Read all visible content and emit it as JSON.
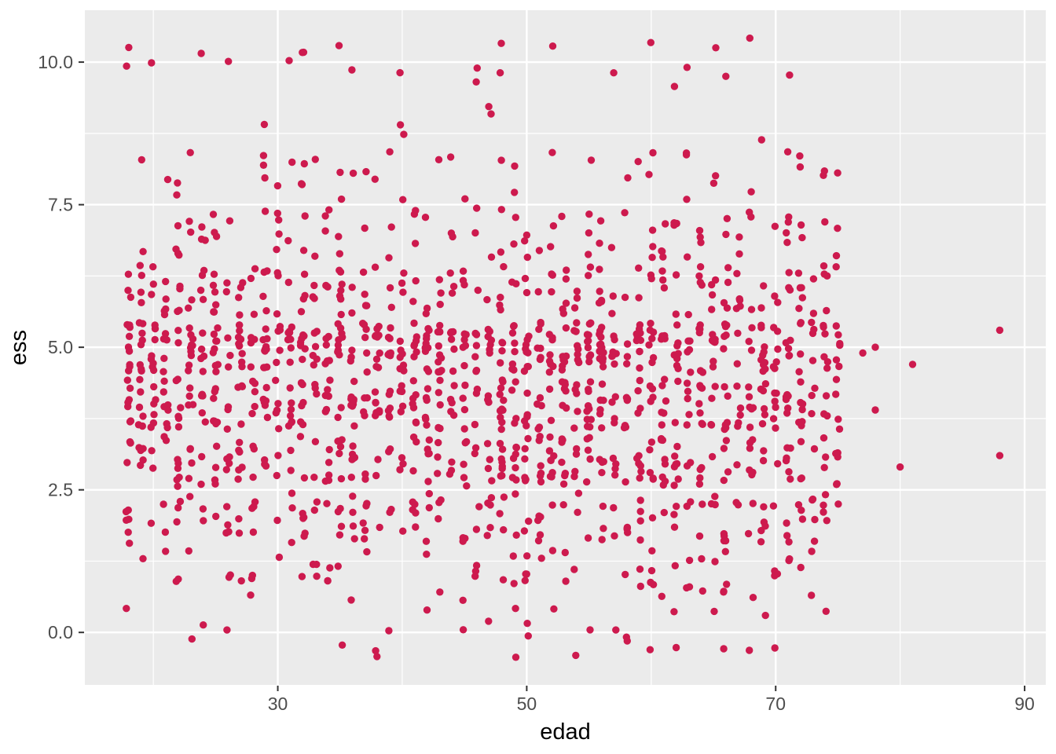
{
  "chart_data": {
    "type": "scatter",
    "title": "",
    "xlabel": "edad",
    "ylabel": "ess",
    "x_ticks": [
      30,
      50,
      70,
      90
    ],
    "x_tick_labels": [
      "30",
      "50",
      "70",
      "90"
    ],
    "x_minor_ticks": [
      20,
      40,
      60,
      80
    ],
    "y_ticks": [
      0.0,
      2.5,
      5.0,
      7.5,
      10.0
    ],
    "y_tick_labels": [
      "0.0",
      "2.5",
      "5.0",
      "7.5",
      "10.0"
    ],
    "y_minor_ticks": [
      1.25,
      3.75,
      6.25,
      8.75
    ],
    "xlim": [
      14.5,
      91.7
    ],
    "ylim": [
      -0.92,
      10.91
    ],
    "grid": true,
    "legend": "none",
    "point_color": "#CD1A4E",
    "point_radius_px": 4.7,
    "panel_bg": "#EBEBEB",
    "grid_color": "#FFFFFF",
    "tick_label_color": "#4D4D4D",
    "axis_title_color": "#000000",
    "tick_mark_color": "#333333",
    "jitter": {
      "width": 0.19,
      "height": 0.44
    },
    "age_range": [
      18,
      75
    ],
    "seed": 7,
    "ess_level_counts": [
      {
        "ess": 0,
        "count": 30
      },
      {
        "ess": 1,
        "count": 68
      },
      {
        "ess": 2,
        "count": 148
      },
      {
        "ess": 3,
        "count": 228
      },
      {
        "ess": 4,
        "count": 310
      },
      {
        "ess": 5,
        "count": 400
      },
      {
        "ess": 6,
        "count": 168
      },
      {
        "ess": 7,
        "count": 88
      },
      {
        "ess": 8,
        "count": 45
      },
      {
        "ess": 9,
        "count": 6
      },
      {
        "ess": 10,
        "count": 24
      }
    ],
    "outlier_points": [
      {
        "edad": 77,
        "ess": 4.9
      },
      {
        "edad": 78,
        "ess": 5.0
      },
      {
        "edad": 78,
        "ess": 3.9
      },
      {
        "edad": 80,
        "ess": 2.9
      },
      {
        "edad": 81,
        "ess": 4.7
      },
      {
        "edad": 88,
        "ess": 5.3
      },
      {
        "edad": 88,
        "ess": 3.1
      }
    ]
  }
}
